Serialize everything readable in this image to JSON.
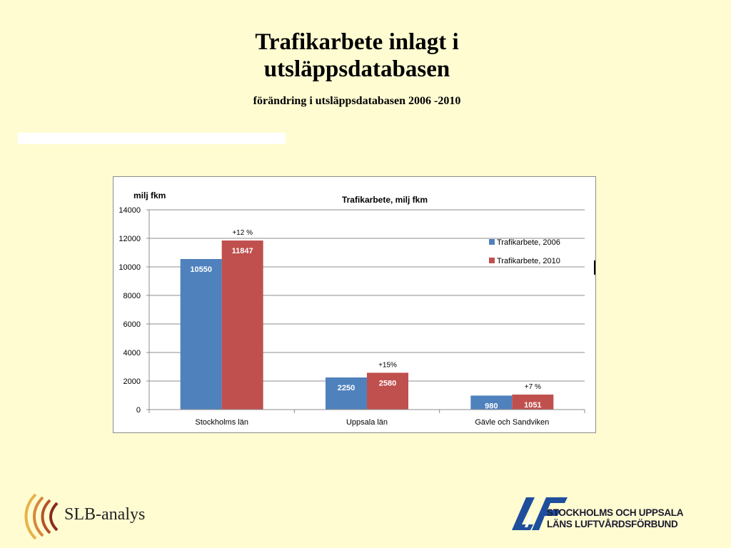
{
  "slide": {
    "title_line1": "Trafikarbete inlagt i",
    "title_line2": "utsläppsdatabasen",
    "subtitle": "förändring i utsläppsdatabasen  2006 -2010"
  },
  "chart_data": {
    "type": "bar",
    "title": "Trafikarbete, milj fkm",
    "ylabel": "milj fkm",
    "xlabel": "",
    "ylim": [
      0,
      14000
    ],
    "yticks": [
      0,
      2000,
      4000,
      6000,
      8000,
      10000,
      12000,
      14000
    ],
    "grid": true,
    "legend_position": "right",
    "categories": [
      "Stockholms län",
      "Uppsala län",
      "Gävle och Sandviken"
    ],
    "series": [
      {
        "name": "Trafikarbete, 2006",
        "color": "#4f81bd",
        "values": [
          10550,
          2250,
          980
        ]
      },
      {
        "name": "Trafikarbete, 2010",
        "color": "#c0504d",
        "values": [
          11847,
          2580,
          1051
        ]
      }
    ],
    "annotations": [
      "+12 %",
      "+15%",
      "+7 %"
    ]
  },
  "logos": {
    "slb_text": "SLB-analys",
    "lvf_line1": "STOCKHOLMS OCH UPPSALA",
    "lvf_line2": "LÄNS LUFTVÅRDSFÖRBUND"
  }
}
